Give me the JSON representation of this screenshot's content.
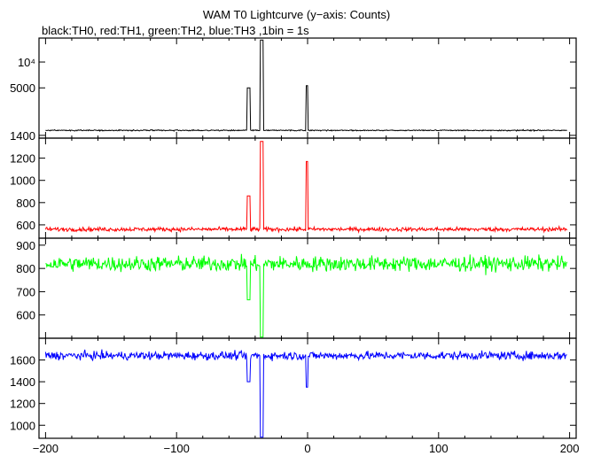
{
  "title": "WAM T0 Lightcurve (y−axis: Counts)",
  "subtitle": "black:TH0, red:TH1, green:TH2, blue:TH3 ,1bin = 1s",
  "chart_data": {
    "type": "line",
    "x_range": [
      -205,
      205
    ],
    "x_ticks": [
      -200,
      -100,
      0,
      100,
      200
    ],
    "x_tick_labels": [
      "−200",
      "−100",
      "0",
      "100",
      "200"
    ],
    "panels": [
      {
        "name": "TH0",
        "color": "#000000",
        "scale": "log",
        "ylim": [
          1300,
          19000
        ],
        "y_ticks": [
          1400,
          5000,
          10000
        ],
        "y_tick_labels": [
          "1400",
          "5000",
          "10⁴"
        ],
        "baseline": 1600,
        "noise": 40,
        "features": [
          {
            "x_start": -46,
            "x_end": -44,
            "value": 5000
          },
          {
            "x_start": -36,
            "x_end": -34,
            "value": 18000
          },
          {
            "x_start": -1,
            "x_end": 0,
            "value": 5300
          }
        ]
      },
      {
        "name": "TH1",
        "color": "#ff0000",
        "scale": "linear",
        "ylim": [
          480,
          1380
        ],
        "y_ticks": [
          600,
          800,
          1000,
          1200
        ],
        "y_tick_labels": [
          "600",
          "800",
          "1000",
          "1200"
        ],
        "baseline": 560,
        "noise": 18,
        "features": [
          {
            "x_start": -46,
            "x_end": -44,
            "value": 860
          },
          {
            "x_start": -36,
            "x_end": -34,
            "value": 1350
          },
          {
            "x_start": -1,
            "x_end": 0,
            "value": 1170
          }
        ]
      },
      {
        "name": "TH2",
        "color": "#00ff00",
        "scale": "linear",
        "ylim": [
          500,
          930
        ],
        "y_ticks": [
          600,
          700,
          800,
          900
        ],
        "y_tick_labels": [
          "600",
          "700",
          "800",
          "900"
        ],
        "baseline": 820,
        "noise": 32,
        "features": [
          {
            "x_start": -46,
            "x_end": -44,
            "value": 665
          },
          {
            "x_start": -36,
            "x_end": -34,
            "value": 505
          }
        ]
      },
      {
        "name": "TH3",
        "color": "#0000ff",
        "scale": "linear",
        "ylim": [
          880,
          1800
        ],
        "y_ticks": [
          1000,
          1200,
          1400,
          1600
        ],
        "y_tick_labels": [
          "1000",
          "1200",
          "1400",
          "1600"
        ],
        "baseline": 1640,
        "noise": 38,
        "features": [
          {
            "x_start": -46,
            "x_end": -44,
            "value": 1400
          },
          {
            "x_start": -36,
            "x_end": -34,
            "value": 890
          },
          {
            "x_start": -1,
            "x_end": 0,
            "value": 1350
          }
        ]
      }
    ]
  }
}
